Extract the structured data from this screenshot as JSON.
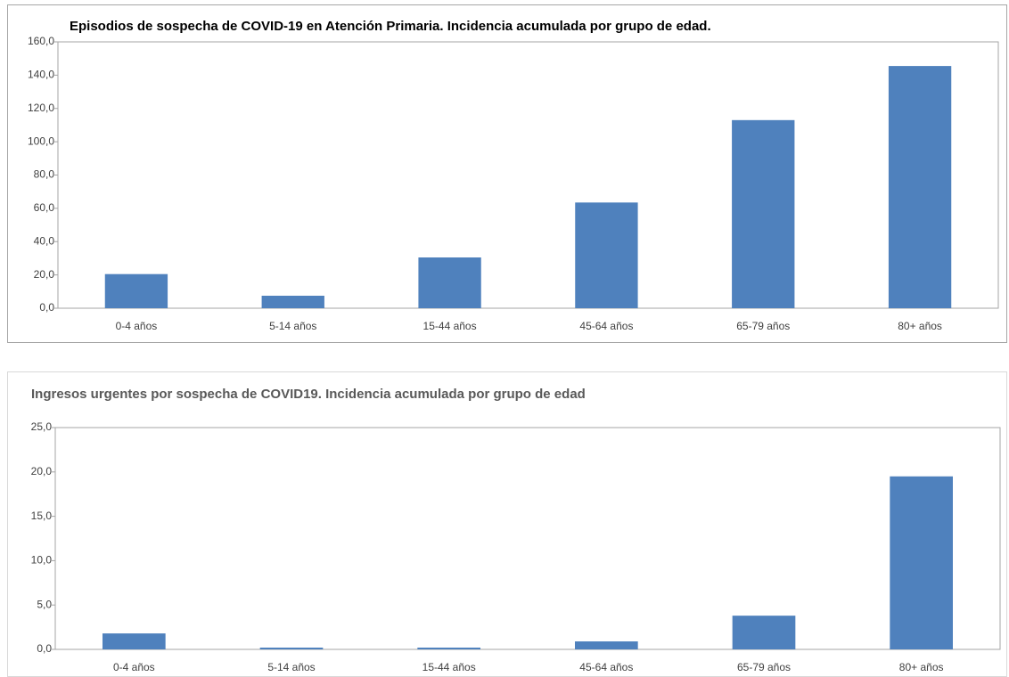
{
  "chart_data": [
    {
      "type": "bar",
      "title": "Episodios de sospecha de COVID-19 en Atención Primaria. Incidencia acumulada por grupo de edad.",
      "categories": [
        "0-4 años",
        "5-14 años",
        "15-44 años",
        "45-64 años",
        "65-79 años",
        "80+ años"
      ],
      "values": [
        20.5,
        7.5,
        30.5,
        63.5,
        113,
        145.5
      ],
      "color": "#4f81bd",
      "ylim": [
        0,
        160
      ],
      "yticks": [
        {
          "value": 0,
          "label": "0,0"
        },
        {
          "value": 20,
          "label": "20,0"
        },
        {
          "value": 40,
          "label": "40,0"
        },
        {
          "value": 60,
          "label": "60,0"
        },
        {
          "value": 80,
          "label": "80,0"
        },
        {
          "value": 100,
          "label": "100,0"
        },
        {
          "value": 120,
          "label": "120,0"
        },
        {
          "value": 140,
          "label": "140,0"
        },
        {
          "value": 160,
          "label": "160,0"
        }
      ],
      "grid": false
    },
    {
      "type": "bar",
      "title": "Ingresos urgentes por sospecha de COVID19. Incidencia acumulada por grupo de edad",
      "categories": [
        "0-4 años",
        "5-14 años",
        "15-44 años",
        "45-64 años",
        "65-79 años",
        "80+ años"
      ],
      "values": [
        1.8,
        0.2,
        0.2,
        0.9,
        3.8,
        19.5
      ],
      "color": "#4f81bd",
      "ylim": [
        0,
        25
      ],
      "yticks": [
        {
          "value": 0,
          "label": "0,0"
        },
        {
          "value": 5,
          "label": "5,0"
        },
        {
          "value": 10,
          "label": "10,0"
        },
        {
          "value": 15,
          "label": "15,0"
        },
        {
          "value": 20,
          "label": "20,0"
        },
        {
          "value": 25,
          "label": "25,0"
        }
      ],
      "grid": false
    }
  ]
}
